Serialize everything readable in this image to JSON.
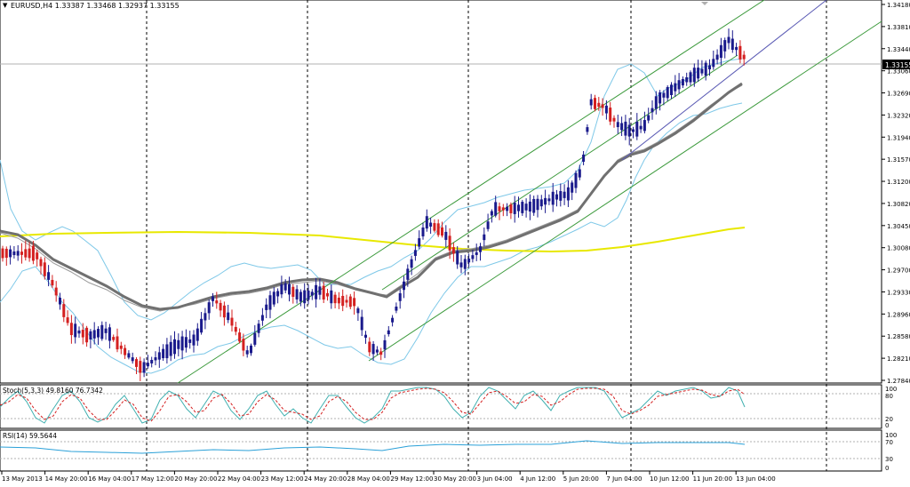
{
  "main_chart": {
    "symbol_line": "EURUSD,H4  1.33387 1.33468 1.32937 1.33155",
    "menu_arrow": "▼",
    "current_price": "1.33155",
    "y_ticks": [
      "1.34180",
      "1.33810",
      "1.33440",
      "1.33060",
      "1.32690",
      "1.32320",
      "1.31940",
      "1.31570",
      "1.31200",
      "1.30820",
      "1.30450",
      "1.30080",
      "1.29700",
      "1.29330",
      "1.28960",
      "1.28580",
      "1.28210",
      "1.27840"
    ]
  },
  "stoch_panel": {
    "label": "Stoch(5,3,3) 49.8160 76.7342",
    "y_ticks": [
      "100",
      "80",
      "20",
      "0"
    ]
  },
  "rsi_panel": {
    "label": "RSI(14) 59.5644",
    "y_ticks": [
      "100",
      "70",
      "30",
      "0"
    ]
  },
  "x_axis": {
    "labels": [
      "13 May 2013",
      "14 May 20:00",
      "16 May 04:00",
      "17 May 12:00",
      "20 May 20:00",
      "22 May 04:00",
      "23 May 12:00",
      "24 May 20:00",
      "28 May 04:00",
      "29 May 12:00",
      "30 May 20:00",
      "3 Jun 04:00",
      "4 Jun 12:00",
      "5 Jun 20:00",
      "7 Jun 04:00",
      "10 Jun 12:00",
      "11 Jun 20:00",
      "13 Jun 04:00"
    ]
  },
  "colors": {
    "bull_candle": "#1a1a8c",
    "bear_candle": "#d42020",
    "ma_slow": "#e8e800",
    "ma_fast": "#707070",
    "bollinger": "#7ec8e8",
    "channel": "#3c9a3c",
    "trendline": "#5a5ab4",
    "stoch_main": "#40b0b0",
    "stoch_signal": "#d42020",
    "rsi": "#2aa0d8"
  }
}
